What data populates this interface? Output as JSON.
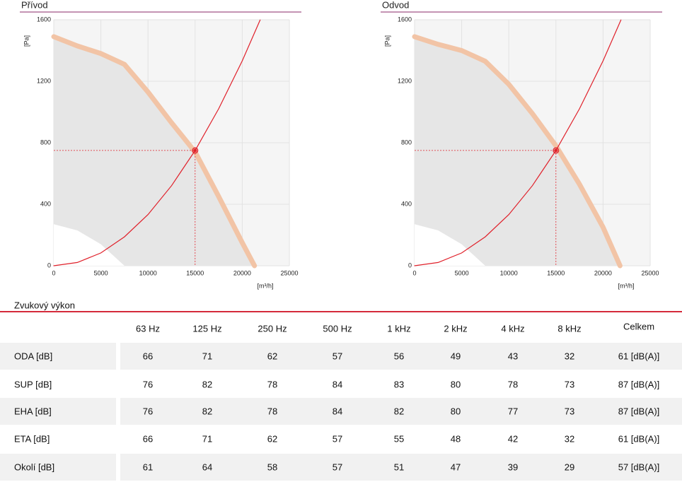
{
  "chart_data": [
    {
      "type": "line",
      "title": "Přívod",
      "ylabel": "[Pa]",
      "xlabel": "[m³/h]",
      "xlim": [
        0,
        25000
      ],
      "ylim": [
        0,
        1600
      ],
      "xticks": [
        0,
        5000,
        10000,
        15000,
        20000,
        25000
      ],
      "yticks": [
        0,
        400,
        800,
        1200,
        1600
      ],
      "grid": true,
      "series": [
        {
          "color": "#f2c4a6",
          "fill": "#e6e6e6",
          "x": [
            0,
            2500,
            5000,
            7500,
            10000,
            12500,
            15000,
            17500,
            20000,
            21300
          ],
          "values": [
            1490,
            1430,
            1380,
            1310,
            1130,
            930,
            740,
            450,
            150,
            0
          ]
        },
        {
          "color": "#ffffff",
          "fill": "#ffffff",
          "x": [
            0,
            2500,
            5000,
            7500
          ],
          "values": [
            270,
            230,
            140,
            0
          ]
        },
        {
          "color": "#e0202a",
          "x": [
            0,
            2500,
            5000,
            7500,
            10000,
            12500,
            15000,
            17500,
            20000,
            21900
          ],
          "values": [
            0,
            21,
            83,
            188,
            333,
            521,
            750,
            1021,
            1333,
            1599
          ]
        }
      ],
      "point": {
        "x": 15000,
        "y": 750,
        "color": "#e0202a"
      }
    },
    {
      "type": "line",
      "title": "Odvod",
      "ylabel": "[Pa]",
      "xlabel": "[m³/h]",
      "xlim": [
        0,
        25000
      ],
      "ylim": [
        0,
        1600
      ],
      "xticks": [
        0,
        5000,
        10000,
        15000,
        20000,
        25000
      ],
      "yticks": [
        0,
        400,
        800,
        1200,
        1600
      ],
      "grid": true,
      "series": [
        {
          "color": "#f2c4a6",
          "fill": "#e6e6e6",
          "x": [
            0,
            2500,
            5000,
            7500,
            10000,
            12500,
            15000,
            17500,
            20000,
            21800
          ],
          "values": [
            1490,
            1440,
            1400,
            1330,
            1180,
            990,
            780,
            530,
            250,
            0
          ]
        },
        {
          "color": "#ffffff",
          "fill": "#ffffff",
          "x": [
            0,
            2500,
            5000,
            7500
          ],
          "values": [
            270,
            230,
            140,
            0
          ]
        },
        {
          "color": "#e0202a",
          "x": [
            0,
            2500,
            5000,
            7500,
            10000,
            12500,
            15000,
            17500,
            20000,
            21900
          ],
          "values": [
            0,
            21,
            83,
            188,
            333,
            521,
            750,
            1021,
            1333,
            1599
          ]
        }
      ],
      "point": {
        "x": 15000,
        "y": 750,
        "color": "#e0202a"
      }
    }
  ],
  "table": {
    "title": "Zvukový výkon",
    "columns": [
      "63 Hz",
      "125 Hz",
      "250 Hz",
      "500 Hz",
      "1 kHz",
      "2 kHz",
      "4 kHz",
      "8 kHz",
      "Celkem"
    ],
    "rows": [
      {
        "label": "ODA [dB]",
        "cells": [
          66,
          71,
          62,
          57,
          56,
          49,
          43,
          32
        ],
        "total": "61 [dB(A)]"
      },
      {
        "label": "SUP [dB]",
        "cells": [
          76,
          82,
          78,
          84,
          83,
          80,
          78,
          73
        ],
        "total": "87 [dB(A)]"
      },
      {
        "label": "EHA [dB]",
        "cells": [
          76,
          82,
          78,
          84,
          82,
          80,
          77,
          73
        ],
        "total": "87 [dB(A)]"
      },
      {
        "label": "ETA [dB]",
        "cells": [
          66,
          71,
          62,
          57,
          55,
          48,
          42,
          32
        ],
        "total": "61 [dB(A)]"
      },
      {
        "label": "Okolí [dB]",
        "cells": [
          61,
          64,
          58,
          57,
          51,
          47,
          39,
          29
        ],
        "total": "57 [dB(A)]"
      }
    ]
  }
}
